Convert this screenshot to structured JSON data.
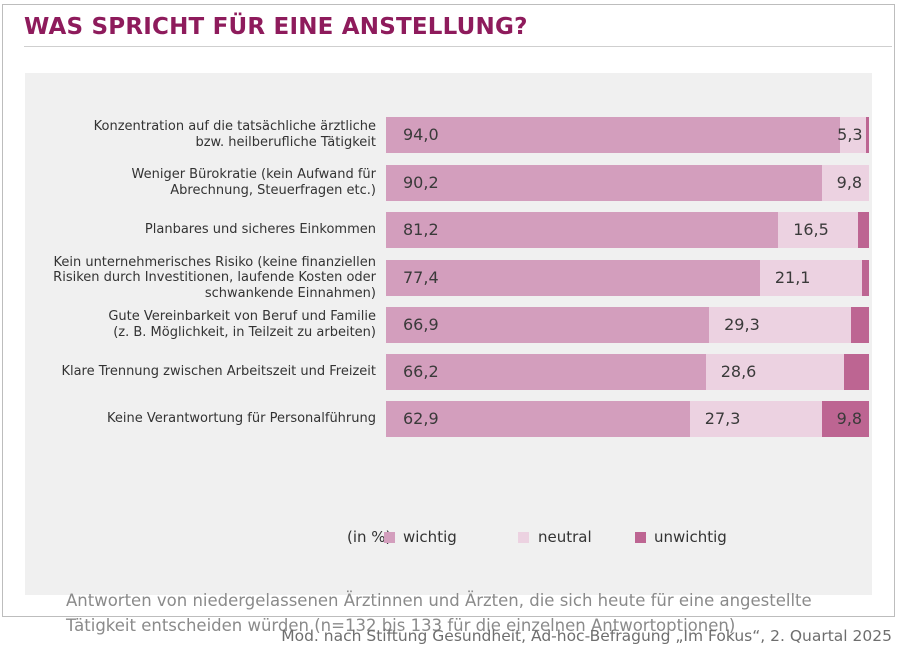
{
  "title": "WAS SPRICHT FÜR EINE ANSTELLUNG?",
  "note": "Antworten von niedergelassenen Ärztinnen und Ärzten, die sich heute für eine angestellte Tätigkeit entscheiden würden (n=132 bis 133 für die einzelnen Antwortoptionen)",
  "source": "Mod. nach Stiftung Gesundheit, Ad-hoc-Befragung „Im Fokus“, 2. Quartal 2025",
  "colors": {
    "title": "#8e1b5c",
    "wichtig": "#d39ebd",
    "neutral": "#ecd2e1",
    "unwichtig": "#bd6592"
  },
  "chart_data": {
    "type": "bar",
    "orientation": "horizontal",
    "stacked": true,
    "unit_label": "(in %)",
    "categories": [
      [
        "Konzentration auf die tatsächliche ärztliche",
        "bzw. heilberufliche Tätigkeit"
      ],
      [
        "Weniger Bürokratie (kein Aufwand für",
        "Abrechnung, Steuerfragen etc.)"
      ],
      [
        "Planbares und sicheres Einkommen"
      ],
      [
        "Kein unternehmerisches Risiko (keine finanziellen",
        "Risiken durch Investitionen, laufende Kosten oder",
        "schwankende Einnahmen)"
      ],
      [
        "Gute Vereinbarkeit von Beruf und Familie",
        "(z. B. Möglichkeit, in Teilzeit zu arbeiten)"
      ],
      [
        "Klare Trennung zwischen Arbeitszeit und Freizeit"
      ],
      [
        "Keine Verantwortung für Personalführung"
      ]
    ],
    "series": [
      {
        "name": "wichtig",
        "color": "#d39ebd",
        "values": [
          94.0,
          90.2,
          81.2,
          77.4,
          66.9,
          66.2,
          62.9
        ],
        "labels": [
          "94,0",
          "90,2",
          "81,2",
          "77,4",
          "66,9",
          "66,2",
          "62,9"
        ]
      },
      {
        "name": "neutral",
        "color": "#ecd2e1",
        "values": [
          5.3,
          9.8,
          16.5,
          21.1,
          29.3,
          28.6,
          27.3
        ],
        "labels": [
          "5,3",
          "9,8",
          "16,5",
          "21,1",
          "29,3",
          "28,6",
          "27,3"
        ]
      },
      {
        "name": "unwichtig",
        "color": "#bd6592",
        "values": [
          0.7,
          0.0,
          2.3,
          1.5,
          3.8,
          5.2,
          9.8
        ],
        "labels": [
          "",
          "",
          "",
          "",
          "",
          "",
          "9,8"
        ]
      }
    ],
    "xlim": [
      0,
      100
    ],
    "grid": false,
    "legend_position": "bottom"
  }
}
